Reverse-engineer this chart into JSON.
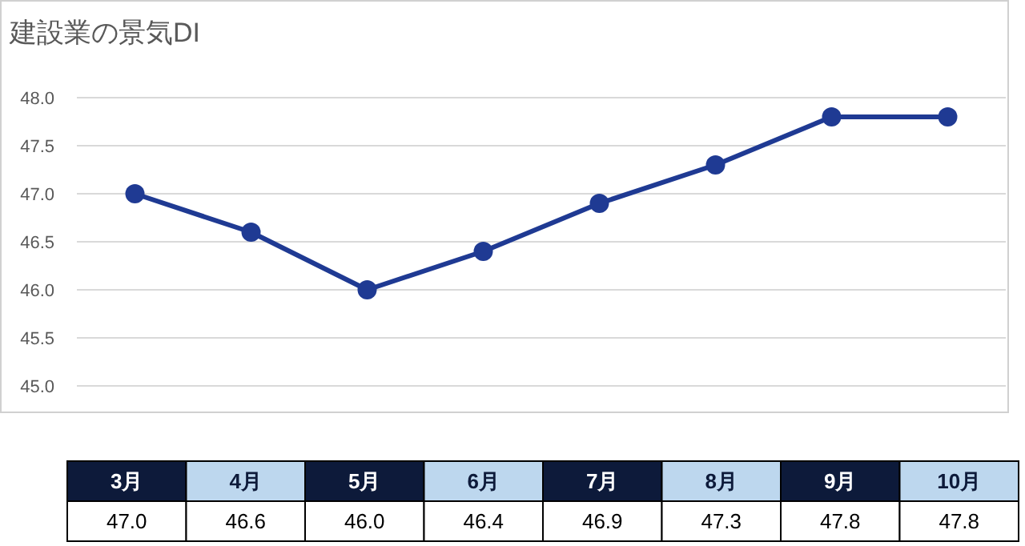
{
  "chart_data": {
    "type": "line",
    "title": "建設業の景気DI",
    "categories": [
      "3月",
      "4月",
      "5月",
      "6月",
      "7月",
      "8月",
      "9月",
      "10月"
    ],
    "series": [
      {
        "color": "#1f3a93",
        "values": [
          47.0,
          46.6,
          46.0,
          46.4,
          46.9,
          47.3,
          47.8,
          47.8
        ],
        "value_labels": [
          "47.0",
          "46.6",
          "46.0",
          "46.4",
          "46.9",
          "47.3",
          "47.8",
          "47.8"
        ]
      }
    ],
    "ylim": [
      45.0,
      48.0
    ],
    "yticks": [
      {
        "value": 45,
        "label": "45.0"
      },
      {
        "value": 45.5,
        "label": "45.5"
      },
      {
        "value": 46,
        "label": "46.0"
      },
      {
        "value": 46.5,
        "label": "46.5"
      },
      {
        "value": 47,
        "label": "47.0"
      },
      {
        "value": 47.5,
        "label": "47.5"
      },
      {
        "value": 48,
        "label": "48.0"
      }
    ],
    "grid": "y",
    "marker": "circle",
    "line_style": "solid"
  }
}
